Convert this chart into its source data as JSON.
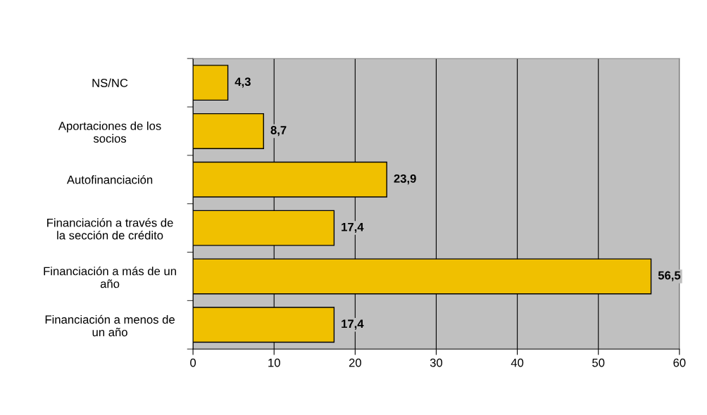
{
  "chart_data": {
    "type": "bar",
    "orientation": "horizontal",
    "categories": [
      "NS/NC",
      "Aportaciones de los socios",
      "Autofinanciación",
      "Financiación a través de la sección de crédito",
      "Financiación a más de un año",
      "Financiación a menos de un año"
    ],
    "values": [
      4.3,
      8.7,
      23.9,
      17.4,
      56.5,
      17.4
    ],
    "value_labels": [
      "4,3",
      "8,7",
      "23,9",
      "17,4",
      "56,5",
      "17,4"
    ],
    "color": "#f0c000",
    "xlim": [
      0,
      60
    ],
    "xticks": [
      0,
      10,
      20,
      30,
      40,
      50,
      60
    ],
    "grid": "x"
  }
}
